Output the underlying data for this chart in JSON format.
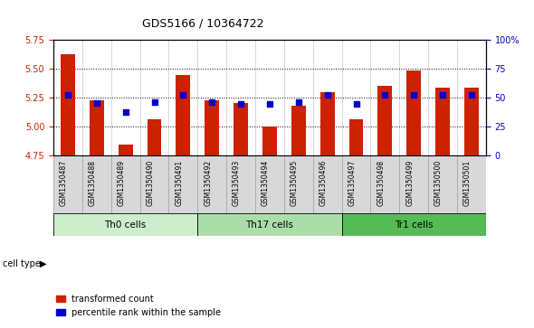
{
  "title": "GDS5166 / 10364722",
  "samples": [
    "GSM1350487",
    "GSM1350488",
    "GSM1350489",
    "GSM1350490",
    "GSM1350491",
    "GSM1350492",
    "GSM1350493",
    "GSM1350494",
    "GSM1350495",
    "GSM1350496",
    "GSM1350497",
    "GSM1350498",
    "GSM1350499",
    "GSM1350500",
    "GSM1350501"
  ],
  "red_values": [
    5.62,
    5.22,
    4.84,
    5.06,
    5.44,
    5.22,
    5.2,
    5.0,
    5.18,
    5.29,
    5.06,
    5.35,
    5.48,
    5.33,
    5.33
  ],
  "blue_values": [
    52,
    45,
    37,
    46,
    52,
    46,
    44,
    44,
    46,
    52,
    44,
    52,
    52,
    52,
    52
  ],
  "bar_base": 4.75,
  "ylim_left": [
    4.75,
    5.75
  ],
  "ylim_right": [
    0,
    100
  ],
  "yticks_left": [
    4.75,
    5.0,
    5.25,
    5.5,
    5.75
  ],
  "yticks_right": [
    0,
    25,
    50,
    75,
    100
  ],
  "cell_types": [
    {
      "label": "Th0 cells",
      "start": 0,
      "end": 5,
      "color": "#cceecc"
    },
    {
      "label": "Th17 cells",
      "start": 5,
      "end": 10,
      "color": "#aaddaa"
    },
    {
      "label": "Tr1 cells",
      "start": 10,
      "end": 15,
      "color": "#55bb55"
    }
  ],
  "bar_color": "#cc2200",
  "blue_color": "#0000cc",
  "bg_color": "#d8d8d8",
  "plot_bg": "#ffffff",
  "legend_red": "transformed count",
  "legend_blue": "percentile rank within the sample"
}
